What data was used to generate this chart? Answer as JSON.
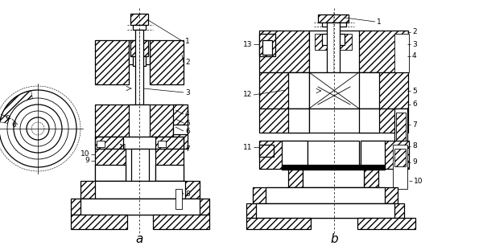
{
  "bg_color": "#ffffff",
  "label_a": "a",
  "label_b": "b",
  "fig_width": 6.0,
  "fig_height": 3.11,
  "dpi": 100
}
